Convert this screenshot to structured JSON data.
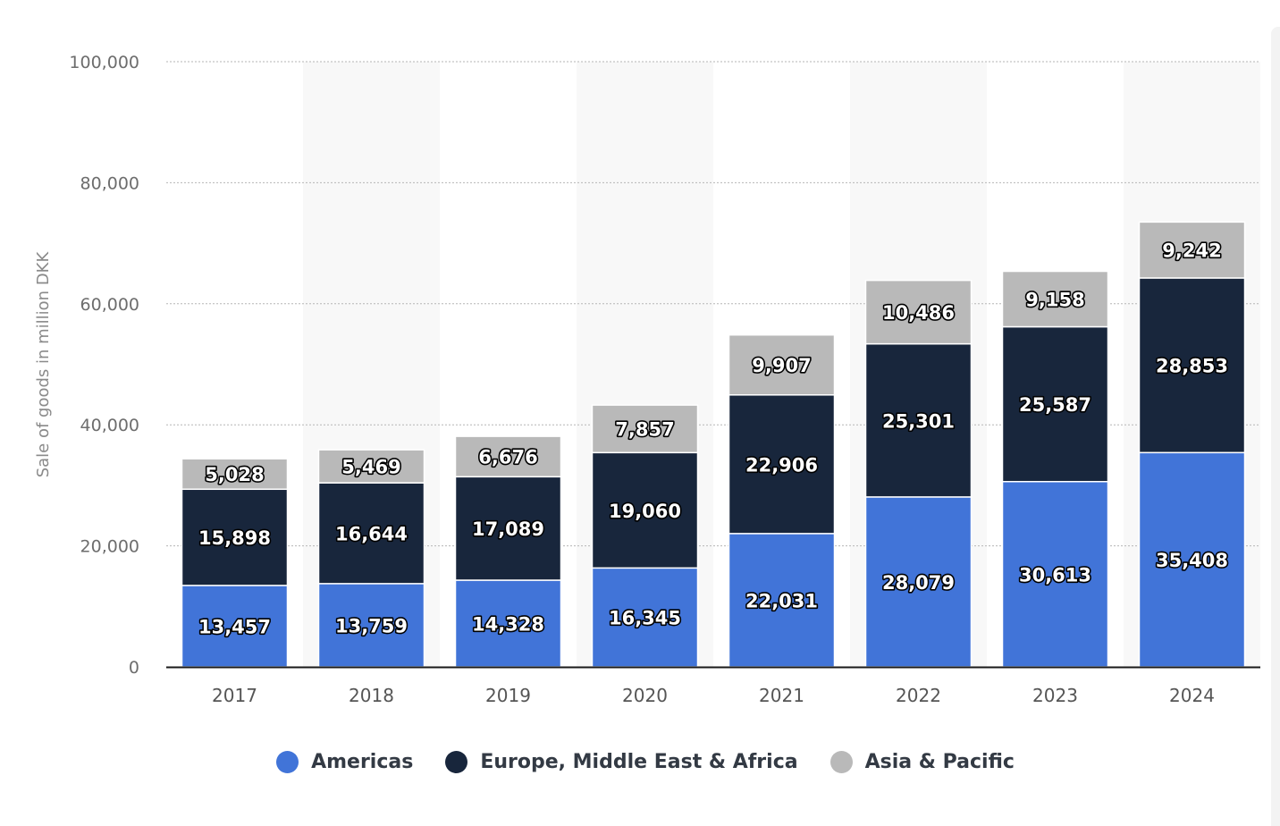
{
  "chart_data": {
    "type": "bar",
    "stacked": true,
    "categories": [
      "2017",
      "2018",
      "2019",
      "2020",
      "2021",
      "2022",
      "2023",
      "2024"
    ],
    "series": [
      {
        "name": "Americas",
        "color": "#4174d8",
        "values": [
          13457,
          13759,
          14328,
          16345,
          22031,
          28079,
          30613,
          35408
        ],
        "labels": [
          "13,457",
          "13,759",
          "14,328",
          "16,345",
          "22,031",
          "28,079",
          "30,613",
          "35,408"
        ]
      },
      {
        "name": "Europe, Middle East & Africa",
        "color": "#18263c",
        "values": [
          15898,
          16644,
          17089,
          19060,
          22906,
          25301,
          25587,
          28853
        ],
        "labels": [
          "15,898",
          "16,644",
          "17,089",
          "19,060",
          "22,906",
          "25,301",
          "25,587",
          "28,853"
        ]
      },
      {
        "name": "Asia & Pacific",
        "color": "#b9b9b9",
        "values": [
          5028,
          5469,
          6676,
          7857,
          9907,
          10486,
          9158,
          9242
        ],
        "labels": [
          "5,028",
          "5,469",
          "6,676",
          "7,857",
          "9,907",
          "10,486",
          "9,158",
          "9,242"
        ]
      }
    ],
    "ylabel": "Sale of goods in million DKK",
    "xlabel": "",
    "ylim": [
      0,
      100000
    ],
    "yticks": [
      0,
      20000,
      40000,
      60000,
      80000,
      100000
    ],
    "ytick_labels": [
      "0",
      "20,000",
      "40,000",
      "60,000",
      "80,000",
      "100,000"
    ],
    "grid": true,
    "legend_position": "bottom"
  }
}
